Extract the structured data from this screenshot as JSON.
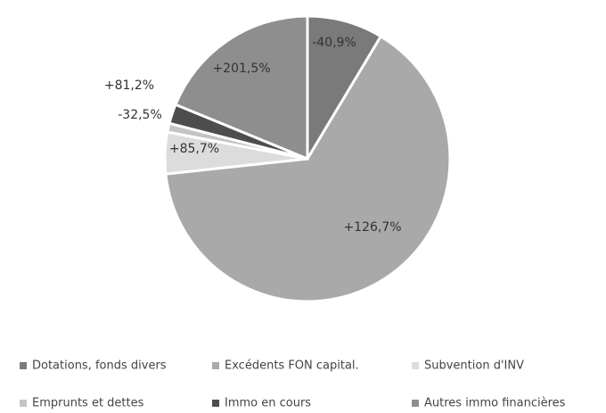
{
  "chart_data": {
    "type": "pie",
    "categories": [
      "Dotations, fonds divers",
      "Excédents FON capital.",
      "Subvention d'INV",
      "Emprunts et dettes",
      "Immo en cours",
      "Autres immo financières"
    ],
    "values": [
      8.6,
      64.7,
      4.7,
      1.0,
      2.2,
      18.8
    ],
    "colors": [
      "#7a7a7a",
      "#a9a9a9",
      "#dcdcdc",
      "#c4c4c4",
      "#4d4d4d",
      "#8e8e8e"
    ],
    "slice_labels": [
      "-40,9%",
      "+126,7%",
      "+85,7%",
      "-32,5%",
      "+81,2%",
      "+201,5%"
    ],
    "start_angle": 0,
    "direction": "clockwise",
    "legend": "bottom"
  }
}
